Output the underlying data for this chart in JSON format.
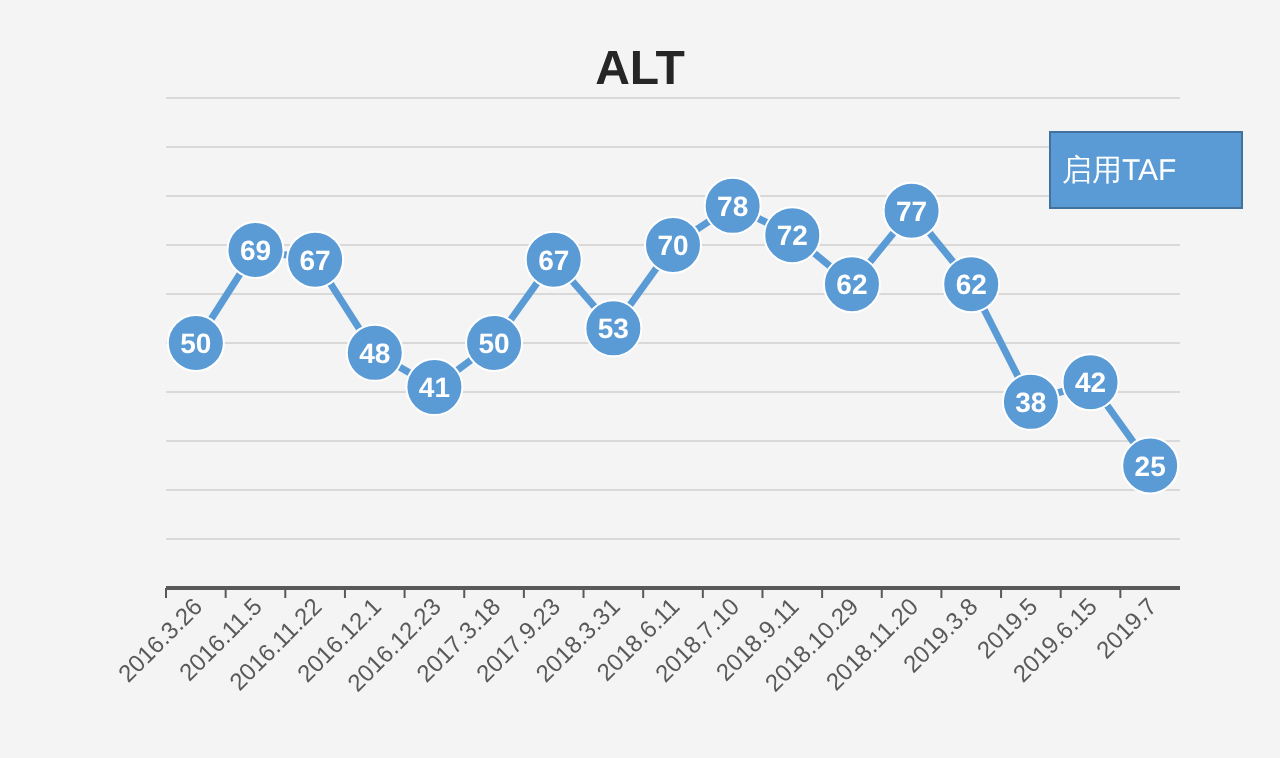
{
  "chart_data": {
    "type": "line",
    "title": "ALT",
    "categories": [
      "2016.3.26",
      "2016.11.5",
      "2016.11.22",
      "2016.12.1",
      "2016.12.23",
      "2017.3.18",
      "2017.9.23",
      "2018.3.31",
      "2018.6.11",
      "2018.7.10",
      "2018.9.11",
      "2018.10.29",
      "2018.11.20",
      "2019.3.8",
      "2019.5",
      "2019.6.15",
      "2019.7"
    ],
    "series": [
      {
        "color": "#5b9bd5",
        "values": [
          50,
          69,
          67,
          48,
          41,
          50,
          67,
          53,
          70,
          78,
          72,
          62,
          77,
          62,
          38,
          42,
          25
        ]
      }
    ],
    "ylim": [
      0,
      100
    ],
    "yticks": [
      {
        "value": 0,
        "label": null
      },
      {
        "value": 10,
        "label": null
      },
      {
        "value": 20,
        "label": null
      },
      {
        "value": 30,
        "label": null
      },
      {
        "value": 40,
        "label": null
      },
      {
        "value": 50,
        "label": null
      },
      {
        "value": 60,
        "label": null
      },
      {
        "value": 70,
        "label": null
      },
      {
        "value": 80,
        "label": null
      },
      {
        "value": 90,
        "label": null
      },
      {
        "value": 100,
        "label": null
      }
    ],
    "grid": "y",
    "marker": "circle",
    "line_style": "solid",
    "data_labels": true,
    "tick_labels": "x",
    "annotations": [
      "启用TAF"
    ]
  }
}
